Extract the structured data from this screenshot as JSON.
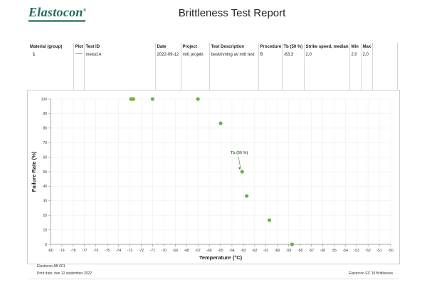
{
  "header": {
    "logo_text": "Elastocon",
    "logo_mark": "®",
    "title": "Brittleness Test Report"
  },
  "results_table": {
    "columns": [
      "Material (group)",
      "Plot",
      "Test ID",
      "Date",
      "Project",
      "Test Description",
      "Procedure",
      "Tb (50 %)",
      "Strike speed, median",
      "Min",
      "Max"
    ],
    "rows": [
      {
        "material": "1",
        "plot_color": "#6cb33f",
        "test_id": "metod A",
        "date": "2022-09-12",
        "project": "mitt projekt",
        "description": "beskrivning av mitt test",
        "procedure": "B",
        "tb50": "-63,3",
        "strike_speed": "2,0",
        "min": "2,0",
        "max": "2,0"
      }
    ]
  },
  "chart_data": {
    "type": "scatter",
    "xlabel": "Temperature (°C)",
    "ylabel": "Failure Rate (%)",
    "xlim": [
      -80,
      -50
    ],
    "ylim": [
      0,
      100
    ],
    "x_ticks": [
      -80,
      -79,
      -78,
      -77,
      -76,
      -75,
      -74,
      -73,
      -72,
      -71,
      -70,
      -69,
      -68,
      -67,
      -66,
      -65,
      -64,
      -63,
      -62,
      -61,
      -60,
      -59,
      -58,
      -57,
      -56,
      -55,
      -54,
      -53,
      -52,
      -51,
      -50
    ],
    "y_ticks": [
      0,
      10,
      20,
      30,
      40,
      50,
      60,
      70,
      80,
      90,
      100
    ],
    "grid": true,
    "color": "#6cb33f",
    "points": [
      {
        "x": -72.9,
        "y": 100
      },
      {
        "x": -72.7,
        "y": 100
      },
      {
        "x": -71.0,
        "y": 100
      },
      {
        "x": -67.0,
        "y": 100
      },
      {
        "x": -65.0,
        "y": 83.3
      },
      {
        "x": -63.1,
        "y": 50
      },
      {
        "x": -62.7,
        "y": 33.3
      },
      {
        "x": -60.7,
        "y": 16.7
      },
      {
        "x": -58.7,
        "y": 0
      }
    ],
    "annotation": {
      "text": "Tb (50 %)",
      "x": -63.3,
      "y": 50
    }
  },
  "footer": {
    "company": "Elastocon AB 001",
    "print_date": "Print date: den 12 september 2022",
    "product": "Elastocon EC 19 Brittleness"
  }
}
